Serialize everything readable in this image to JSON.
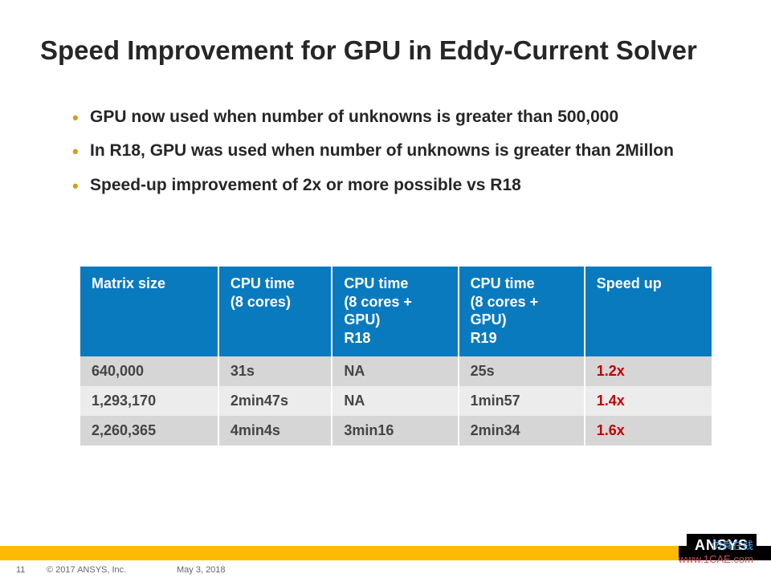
{
  "title": "Speed Improvement for GPU in Eddy-Current Solver",
  "bullets": [
    "GPU now used when number of unknowns is greater than 500,000",
    "In R18, GPU was used when number of unknowns is greater than 2Millon",
    "Speed-up improvement of 2x or more possible vs R18"
  ],
  "table": {
    "column_widths": [
      "22%",
      "18%",
      "20%",
      "20%",
      "20%"
    ],
    "header_bg": "#0a7abf",
    "header_fg": "#ffffff",
    "body_stripe_colors": [
      "#d6d6d6",
      "#ececec"
    ],
    "speedup_color": "#c00000",
    "cell_fontsize": 18,
    "columns": [
      "Matrix size",
      "CPU time (8 cores)",
      "CPU time (8 cores + GPU) R18",
      "CPU time (8 cores + GPU) R19",
      "Speed up"
    ],
    "rows": [
      [
        "640,000",
        "31s",
        "NA",
        "25s",
        "1.2x"
      ],
      [
        "1,293,170",
        "2min47s",
        "NA",
        "1min57",
        "1.4x"
      ],
      [
        "2,260,365",
        "4min4s",
        "3min16",
        "2min34",
        "1.6x"
      ]
    ]
  },
  "footer": {
    "page": "11",
    "copyright": "© 2017 ANSYS, Inc.",
    "date": "May 3, 2018",
    "logo_text": "ANSYS",
    "bar_left_color": "#fdbb00",
    "bar_right_color": "#000000"
  },
  "watermarks": {
    "faint": "1CAE.COM",
    "cn": "仿真在线",
    "url": "www.1CAE.com"
  }
}
